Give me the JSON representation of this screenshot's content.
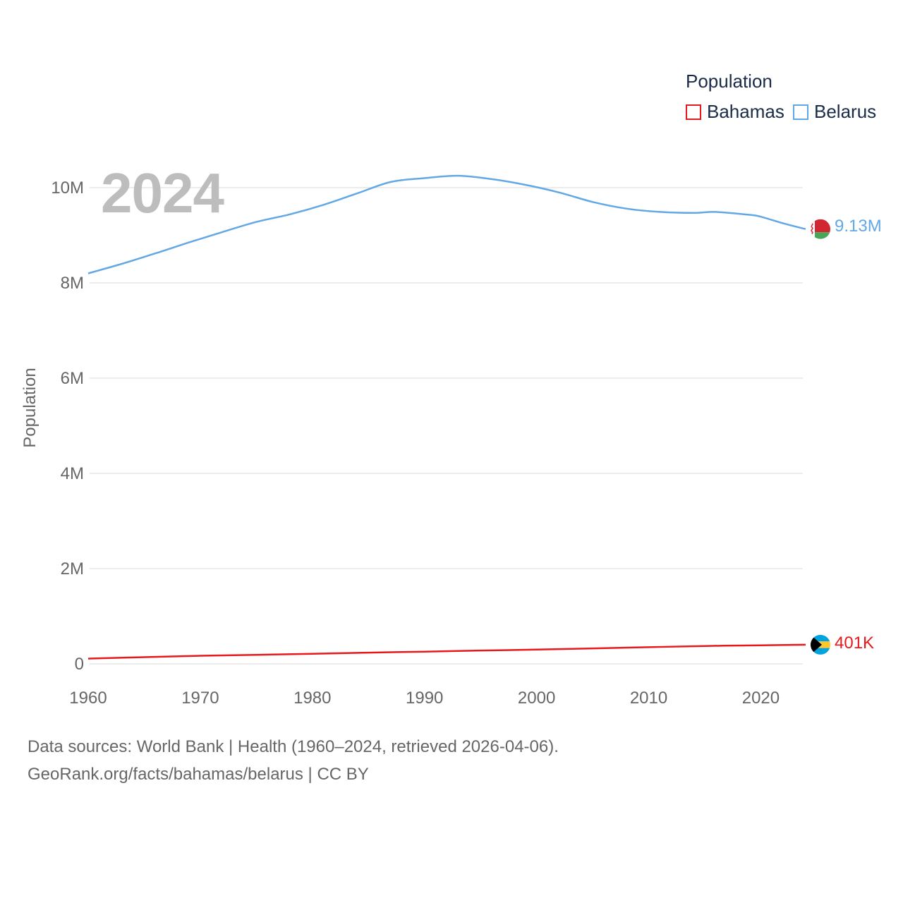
{
  "legend": {
    "title": "Population",
    "items": [
      {
        "name": "Bahamas",
        "color": "#e8191c"
      },
      {
        "name": "Belarus",
        "color": "#62a8e5"
      }
    ]
  },
  "year_label": "2024",
  "end_labels": {
    "bahamas": "401K",
    "belarus": "9.13M"
  },
  "sources": {
    "line1": "Data sources: World Bank | Health (1960–2024, retrieved 2026-04-06).",
    "line2": "GeoRank.org/facts/bahamas/belarus | CC BY"
  },
  "chart_data": {
    "type": "line",
    "title": "",
    "xlabel": "",
    "ylabel": "Population",
    "xlim": [
      1960,
      2024
    ],
    "ylim": [
      0,
      10000000
    ],
    "x_ticks": [
      1960,
      1970,
      1980,
      1990,
      2000,
      2010,
      2020
    ],
    "y_ticks": [
      {
        "value": 0,
        "label": "0"
      },
      {
        "value": 2000000,
        "label": "2M"
      },
      {
        "value": 4000000,
        "label": "4M"
      },
      {
        "value": 6000000,
        "label": "6M"
      },
      {
        "value": 8000000,
        "label": "8M"
      },
      {
        "value": 10000000,
        "label": "10M"
      }
    ],
    "grid": true,
    "series": [
      {
        "name": "Belarus",
        "color": "#62a8e5",
        "x": [
          1960,
          1963,
          1966,
          1969,
          1972,
          1975,
          1978,
          1981,
          1984,
          1987,
          1990,
          1993,
          1996,
          1999,
          2002,
          2005,
          2008,
          2011,
          2014,
          2016,
          2019,
          2020,
          2022,
          2024
        ],
        "values": [
          8200000,
          8400000,
          8620000,
          8850000,
          9070000,
          9280000,
          9440000,
          9640000,
          9880000,
          10120000,
          10200000,
          10250000,
          10180000,
          10060000,
          9900000,
          9700000,
          9560000,
          9490000,
          9470000,
          9490000,
          9430000,
          9390000,
          9250000,
          9130000
        ]
      },
      {
        "name": "Bahamas",
        "color": "#e8191c",
        "x": [
          1960,
          1965,
          1970,
          1975,
          1980,
          1985,
          1990,
          1995,
          2000,
          2005,
          2010,
          2015,
          2020,
          2024
        ],
        "values": [
          110000,
          140000,
          170000,
          190000,
          210000,
          235000,
          256000,
          280000,
          300000,
          325000,
          350000,
          375000,
          390000,
          401000
        ]
      }
    ]
  }
}
